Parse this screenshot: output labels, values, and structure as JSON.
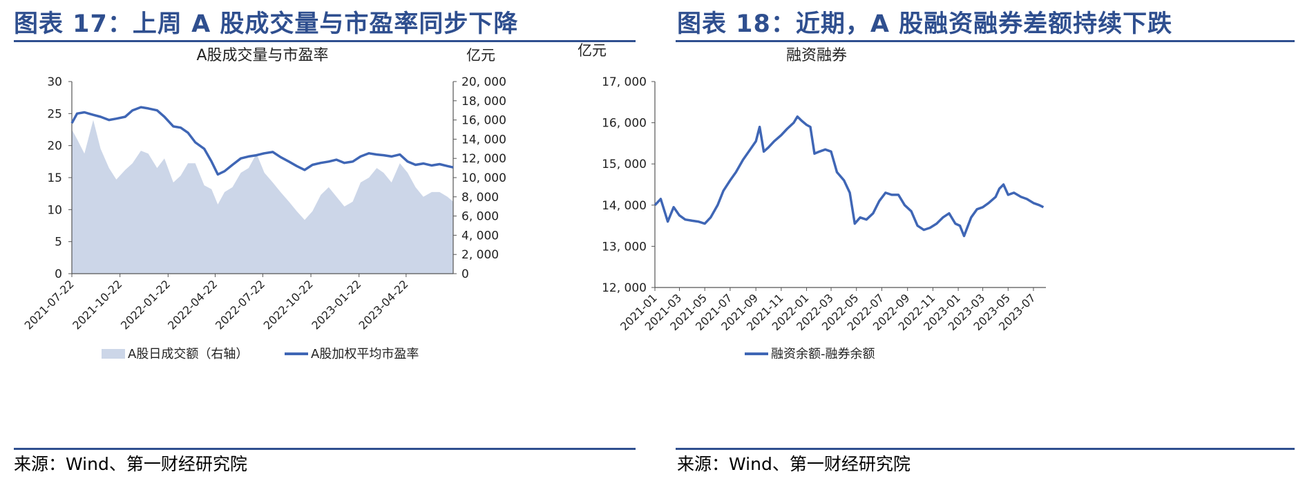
{
  "figures": [
    {
      "figure_title": "图表 17：上周 A 股成交量与市盈率同步下降",
      "source": "来源：Wind、第一财经研究院",
      "chart_data": {
        "type": "area",
        "title": "A股成交量与市盈率",
        "left_axis": {
          "ylim": [
            0,
            30
          ],
          "ticks": [
            "0",
            "5",
            "10",
            "15",
            "20",
            "25",
            "30"
          ]
        },
        "right_axis": {
          "unit": "亿元",
          "ylim": [
            0,
            20000
          ],
          "ticks": [
            "0",
            "2, 000",
            "4, 000",
            "6, 000",
            "8, 000",
            "10, 000",
            "12, 000",
            "14, 000",
            "16, 000",
            "18, 000",
            "20, 000"
          ]
        },
        "x_tick_labels": [
          "2021-07-22",
          "2021-10-22",
          "2022-01-22",
          "2022-04-22",
          "2022-07-22",
          "2022-10-22",
          "2023-01-22",
          "2023-04-22"
        ],
        "x_range": [
          "2021-07-22",
          "2023-07-21"
        ],
        "grid": false,
        "legend_position": "bottom",
        "series": [
          {
            "name": "A股日成交额（右轴）",
            "kind": "area",
            "axis": "right",
            "color": "#ccd6e8",
            "x": [
              "2021-07-22",
              "2021-08-01",
              "2021-08-15",
              "2021-09-01",
              "2021-09-15",
              "2021-10-01",
              "2021-10-15",
              "2021-11-01",
              "2021-11-15",
              "2021-12-01",
              "2021-12-15",
              "2022-01-01",
              "2022-01-15",
              "2022-02-01",
              "2022-02-15",
              "2022-03-01",
              "2022-03-15",
              "2022-04-01",
              "2022-04-15",
              "2022-04-27",
              "2022-05-10",
              "2022-05-25",
              "2022-06-10",
              "2022-06-25",
              "2022-07-10",
              "2022-07-25",
              "2022-08-10",
              "2022-08-25",
              "2022-09-10",
              "2022-09-25",
              "2022-10-10",
              "2022-10-25",
              "2022-11-10",
              "2022-11-25",
              "2022-12-10",
              "2022-12-25",
              "2023-01-10",
              "2023-01-25",
              "2023-02-10",
              "2023-02-25",
              "2023-03-10",
              "2023-03-25",
              "2023-04-10",
              "2023-04-25",
              "2023-05-10",
              "2023-05-25",
              "2023-06-10",
              "2023-06-25",
              "2023-07-10",
              "2023-07-21"
            ],
            "values": [
              15000,
              14000,
              12500,
              16000,
              13000,
              11000,
              9800,
              10800,
              11500,
              12800,
              12500,
              11000,
              12000,
              9500,
              10200,
              11500,
              11500,
              9200,
              8800,
              7200,
              8500,
              9000,
              10500,
              11000,
              12500,
              10500,
              9500,
              8500,
              7500,
              6500,
              5600,
              6500,
              8200,
              9000,
              8000,
              7000,
              7500,
              9500,
              10000,
              11000,
              10500,
              9500,
              11500,
              10500,
              9000,
              8000,
              8500,
              8500,
              8000,
              7500
            ]
          },
          {
            "name": "A股加权平均市盈率",
            "kind": "line",
            "axis": "left",
            "color": "#3f66b5",
            "x": [
              "2021-07-22",
              "2021-08-01",
              "2021-08-15",
              "2021-09-01",
              "2021-09-15",
              "2021-10-01",
              "2021-10-15",
              "2021-11-01",
              "2021-11-15",
              "2021-12-01",
              "2021-12-15",
              "2022-01-01",
              "2022-01-15",
              "2022-02-01",
              "2022-02-15",
              "2022-03-01",
              "2022-03-15",
              "2022-04-01",
              "2022-04-15",
              "2022-04-27",
              "2022-05-10",
              "2022-05-25",
              "2022-06-10",
              "2022-06-25",
              "2022-07-10",
              "2022-07-25",
              "2022-08-10",
              "2022-08-25",
              "2022-09-10",
              "2022-09-25",
              "2022-10-10",
              "2022-10-25",
              "2022-11-10",
              "2022-11-25",
              "2022-12-10",
              "2022-12-25",
              "2023-01-10",
              "2023-01-25",
              "2023-02-10",
              "2023-02-25",
              "2023-03-10",
              "2023-03-25",
              "2023-04-10",
              "2023-04-25",
              "2023-05-10",
              "2023-05-25",
              "2023-06-10",
              "2023-06-25",
              "2023-07-10",
              "2023-07-21"
            ],
            "values": [
              23.5,
              25.0,
              25.2,
              24.8,
              24.5,
              24.0,
              24.2,
              24.5,
              25.5,
              26.0,
              25.8,
              25.5,
              24.5,
              23.0,
              22.8,
              22.0,
              20.5,
              19.5,
              17.5,
              15.5,
              16.0,
              17.0,
              18.0,
              18.3,
              18.5,
              18.8,
              19.0,
              18.2,
              17.5,
              16.8,
              16.2,
              17.0,
              17.3,
              17.5,
              17.8,
              17.3,
              17.5,
              18.3,
              18.8,
              18.6,
              18.5,
              18.3,
              18.6,
              17.5,
              17.0,
              17.2,
              16.9,
              17.1,
              16.8,
              16.6
            ]
          }
        ]
      }
    },
    {
      "figure_title": "图表 18：近期，A 股融资融券差额持续下跌",
      "source": "来源：Wind、第一财经研究院",
      "chart_data": {
        "type": "line",
        "title": "融资融券",
        "y_unit": "亿元",
        "ylim": [
          12000,
          17000
        ],
        "y_ticks": [
          "12, 000",
          "13, 000",
          "14, 000",
          "15, 000",
          "16, 000",
          "17, 000"
        ],
        "x_tick_labels": [
          "2021-01",
          "2021-03",
          "2021-05",
          "2021-07",
          "2021-09",
          "2021-11",
          "2022-01",
          "2022-03",
          "2022-05",
          "2022-07",
          "2022-09",
          "2022-11",
          "2023-01",
          "2023-03",
          "2023-05",
          "2023-07"
        ],
        "x_range": [
          "2021-01-01",
          "2023-07-31"
        ],
        "grid": false,
        "legend_position": "bottom",
        "series": [
          {
            "name": "融资余额-融券余额",
            "color": "#3f66b5",
            "x": [
              "2021-01-01",
              "2021-01-15",
              "2021-02-01",
              "2021-02-15",
              "2021-03-01",
              "2021-03-15",
              "2021-04-01",
              "2021-04-15",
              "2021-05-01",
              "2021-05-15",
              "2021-06-01",
              "2021-06-15",
              "2021-07-01",
              "2021-07-15",
              "2021-08-01",
              "2021-08-15",
              "2021-09-01",
              "2021-09-10",
              "2021-09-20",
              "2021-10-01",
              "2021-10-15",
              "2021-11-01",
              "2021-11-15",
              "2021-12-01",
              "2021-12-10",
              "2021-12-20",
              "2022-01-01",
              "2022-01-10",
              "2022-01-20",
              "2022-02-01",
              "2022-02-15",
              "2022-03-01",
              "2022-03-15",
              "2022-04-01",
              "2022-04-15",
              "2022-04-27",
              "2022-05-10",
              "2022-05-25",
              "2022-06-10",
              "2022-06-25",
              "2022-07-10",
              "2022-07-25",
              "2022-08-10",
              "2022-08-25",
              "2022-09-10",
              "2022-09-25",
              "2022-10-10",
              "2022-10-25",
              "2022-11-10",
              "2022-11-25",
              "2022-12-10",
              "2022-12-25",
              "2023-01-05",
              "2023-01-15",
              "2023-02-01",
              "2023-02-15",
              "2023-03-01",
              "2023-03-15",
              "2023-04-01",
              "2023-04-10",
              "2023-04-20",
              "2023-05-01",
              "2023-05-15",
              "2023-06-01",
              "2023-06-15",
              "2023-07-01",
              "2023-07-15",
              "2023-07-25"
            ],
            "values": [
              14000,
              14150,
              13600,
              13950,
              13750,
              13650,
              13620,
              13600,
              13550,
              13700,
              14000,
              14350,
              14600,
              14800,
              15100,
              15300,
              15550,
              15900,
              15300,
              15400,
              15550,
              15700,
              15850,
              16000,
              16150,
              16050,
              15950,
              15900,
              15250,
              15300,
              15350,
              15300,
              14800,
              14600,
              14300,
              13550,
              13700,
              13650,
              13800,
              14100,
              14300,
              14250,
              14250,
              14000,
              13850,
              13500,
              13400,
              13450,
              13550,
              13700,
              13800,
              13550,
              13500,
              13250,
              13700,
              13900,
              13950,
              14050,
              14200,
              14400,
              14500,
              14250,
              14300,
              14200,
              14150,
              14050,
              14000,
              13950
            ]
          }
        ]
      }
    }
  ]
}
